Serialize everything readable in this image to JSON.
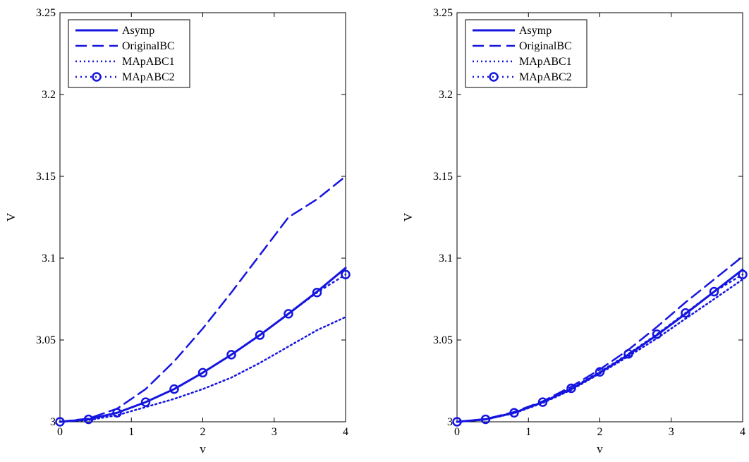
{
  "chart_data": [
    {
      "type": "line",
      "xlabel": "v",
      "ylabel": "V",
      "xlim": [
        0,
        4
      ],
      "ylim": [
        3,
        3.25
      ],
      "xticks": [
        0,
        1,
        2,
        3,
        4
      ],
      "yticks": [
        3,
        3.05,
        3.1,
        3.15,
        3.2,
        3.25
      ],
      "xtick_labels": [
        "0",
        "1",
        "2",
        "3",
        "4"
      ],
      "ytick_labels": [
        "3",
        "3.05",
        "3.1",
        "3.15",
        "3.2",
        "3.25"
      ],
      "grid": false,
      "legend_position": "top-left",
      "series": [
        {
          "name": "Asymp",
          "style": "solid",
          "color": "#1515e0",
          "x": [
            0,
            0.4,
            0.8,
            1.2,
            1.6,
            2.0,
            2.4,
            2.8,
            3.2,
            3.6,
            4.0
          ],
          "y": [
            3.0,
            3.0015,
            3.0055,
            3.012,
            3.02,
            3.03,
            3.041,
            3.053,
            3.066,
            3.0795,
            3.094
          ]
        },
        {
          "name": "OriginalBC",
          "style": "dashed",
          "color": "#1515e0",
          "x": [
            0,
            0.4,
            0.8,
            1.2,
            1.6,
            2.0,
            2.4,
            2.8,
            3.2,
            3.6,
            4.0
          ],
          "y": [
            3.0,
            3.002,
            3.008,
            3.02,
            3.037,
            3.057,
            3.079,
            3.102,
            3.125,
            3.136,
            3.15
          ]
        },
        {
          "name": "MApABC1",
          "style": "dotted",
          "color": "#1515e0",
          "x": [
            0,
            0.4,
            0.8,
            1.2,
            1.6,
            2.0,
            2.4,
            2.8,
            3.2,
            3.6,
            4.0
          ],
          "y": [
            3.0,
            3.001,
            3.004,
            3.009,
            3.014,
            3.02,
            3.027,
            3.036,
            3.046,
            3.056,
            3.064
          ]
        },
        {
          "name": "MApABC2",
          "style": "dotted-circle",
          "color": "#1515e0",
          "x": [
            0,
            0.4,
            0.8,
            1.2,
            1.6,
            2.0,
            2.4,
            2.8,
            3.2,
            3.6,
            4.0
          ],
          "y": [
            3.0,
            3.0015,
            3.0055,
            3.012,
            3.02,
            3.03,
            3.041,
            3.053,
            3.066,
            3.079,
            3.09
          ]
        }
      ]
    },
    {
      "type": "line",
      "xlabel": "v",
      "ylabel": "V",
      "xlim": [
        0,
        4
      ],
      "ylim": [
        3,
        3.25
      ],
      "xticks": [
        0,
        1,
        2,
        3,
        4
      ],
      "yticks": [
        3,
        3.05,
        3.1,
        3.15,
        3.2,
        3.25
      ],
      "xtick_labels": [
        "0",
        "1",
        "2",
        "3",
        "4"
      ],
      "ytick_labels": [
        "3",
        "3.05",
        "3.1",
        "3.15",
        "3.2",
        "3.25"
      ],
      "grid": false,
      "legend_position": "top-left",
      "series": [
        {
          "name": "Asymp",
          "style": "solid",
          "color": "#1515e0",
          "x": [
            0,
            0.4,
            0.8,
            1.2,
            1.6,
            2.0,
            2.4,
            2.8,
            3.2,
            3.6,
            4.0
          ],
          "y": [
            3.0,
            3.0015,
            3.0055,
            3.012,
            3.02,
            3.03,
            3.041,
            3.053,
            3.066,
            3.0795,
            3.093
          ]
        },
        {
          "name": "OriginalBC",
          "style": "dashed",
          "color": "#1515e0",
          "x": [
            0,
            0.4,
            0.8,
            1.2,
            1.6,
            2.0,
            2.4,
            2.8,
            3.2,
            3.6,
            4.0
          ],
          "y": [
            3.0,
            3.0017,
            3.006,
            3.0125,
            3.0215,
            3.032,
            3.044,
            3.058,
            3.073,
            3.087,
            3.101
          ]
        },
        {
          "name": "MApABC1",
          "style": "dotted",
          "color": "#1515e0",
          "x": [
            0,
            0.4,
            0.8,
            1.2,
            1.6,
            2.0,
            2.4,
            2.8,
            3.2,
            3.6,
            4.0
          ],
          "y": [
            3.0,
            3.0014,
            3.0052,
            3.0115,
            3.0195,
            3.0295,
            3.04,
            3.051,
            3.063,
            3.075,
            3.087
          ]
        },
        {
          "name": "MApABC2",
          "style": "dotted-circle",
          "color": "#1515e0",
          "x": [
            0,
            0.4,
            0.8,
            1.2,
            1.6,
            2.0,
            2.4,
            2.8,
            3.2,
            3.6,
            4.0
          ],
          "y": [
            3.0,
            3.0015,
            3.0055,
            3.012,
            3.0205,
            3.0305,
            3.0415,
            3.0535,
            3.0665,
            3.0795,
            3.09
          ]
        }
      ]
    }
  ]
}
